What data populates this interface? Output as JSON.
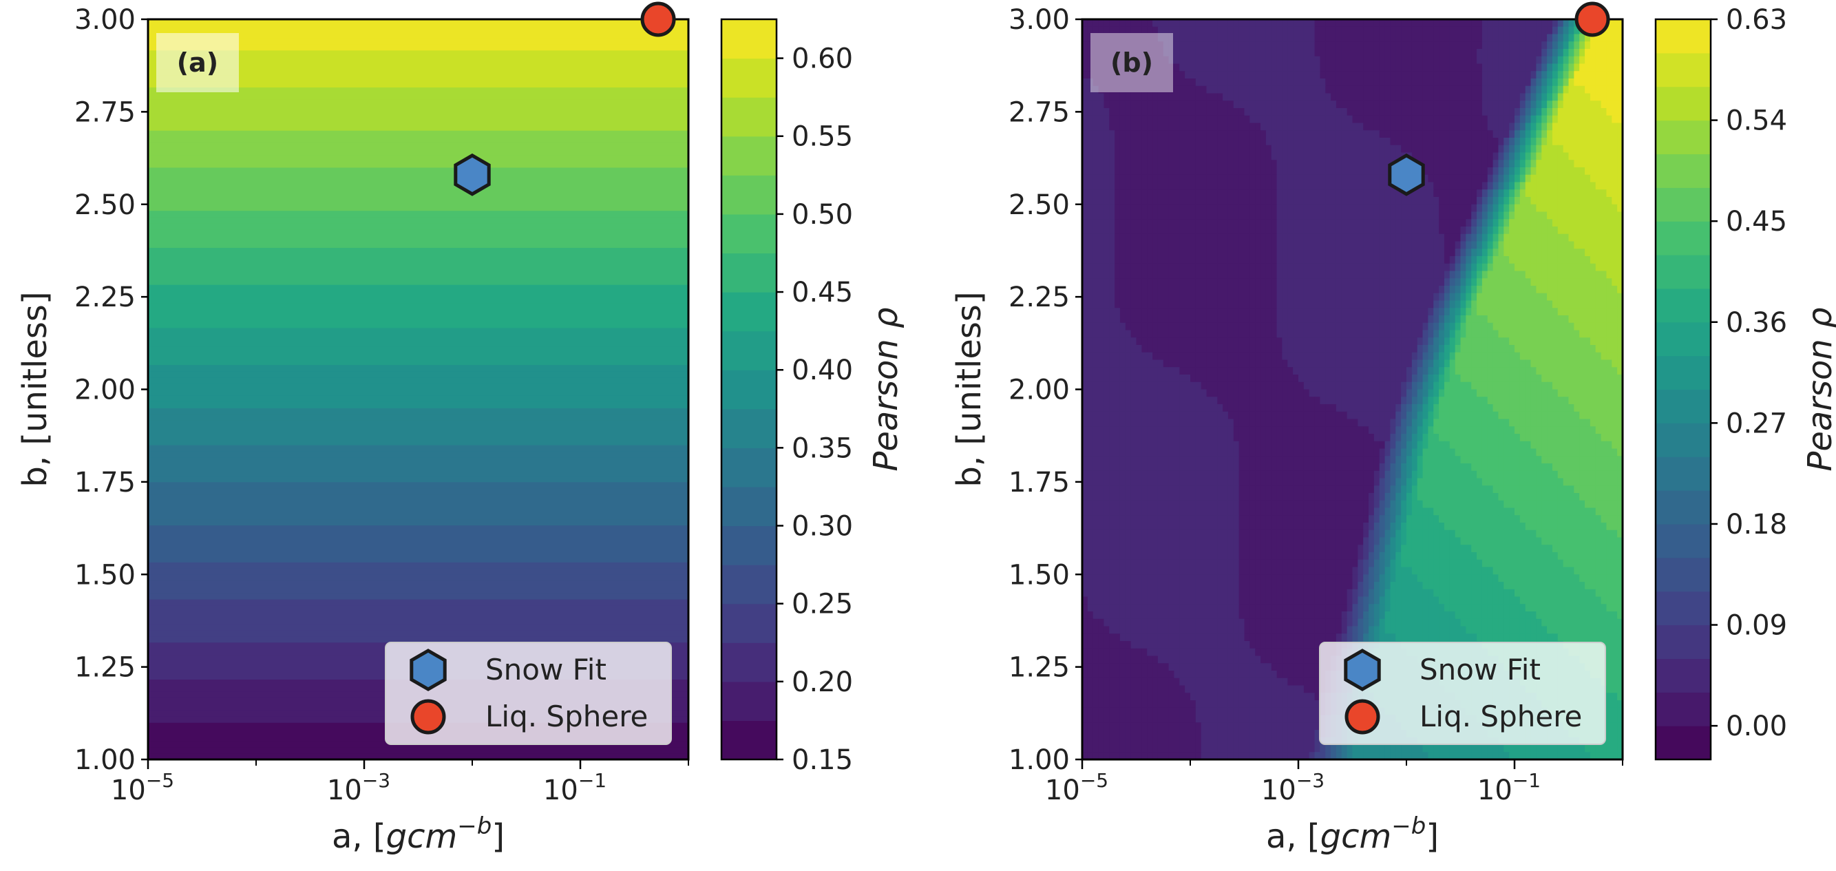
{
  "chart_data": [
    {
      "type": "contour",
      "panel_label": "(a)",
      "title": "",
      "xlabel": "a, [gcm",
      "xlabel_sup": "−b",
      "xlabel_close": "]",
      "ylabel": "b, [unitless]",
      "xscale": "log",
      "xlim_log10": [
        -5,
        0
      ],
      "ylim": [
        1.0,
        3.0
      ],
      "xticks": [
        {
          "base": "10",
          "exp": "−5",
          "log10": -5
        },
        {
          "base": "10",
          "exp": "−3",
          "log10": -3
        },
        {
          "base": "10",
          "exp": "−1",
          "log10": -1
        }
      ],
      "yticks": [
        "1.00",
        "1.25",
        "1.50",
        "1.75",
        "2.00",
        "2.25",
        "2.50",
        "2.75",
        "3.00"
      ],
      "ytick_values": [
        1.0,
        1.25,
        1.5,
        1.75,
        2.0,
        2.25,
        2.5,
        2.75,
        3.0
      ],
      "field": "horizontal bands: rho increases with b from ~0.15 at b=1.00 to ~0.62 at b=3.00, nearly independent of a",
      "colorbar": {
        "label": "Pearson ρ",
        "min": 0.15,
        "max": 0.625,
        "levels": 19,
        "ticks": [
          "0.15",
          "0.20",
          "0.25",
          "0.30",
          "0.35",
          "0.40",
          "0.45",
          "0.50",
          "0.55",
          "0.60"
        ],
        "tick_values": [
          0.15,
          0.2,
          0.25,
          0.3,
          0.35,
          0.4,
          0.45,
          0.5,
          0.55,
          0.6
        ]
      },
      "markers": [
        {
          "name": "Snow Fit",
          "shape": "hexagon",
          "color": "#4a86c6",
          "a_log10": -2.0,
          "b": 2.58
        },
        {
          "name": "Liq. Sphere",
          "shape": "circle",
          "color": "#e9462a",
          "a_log10": -0.28,
          "b": 3.0
        }
      ],
      "legend": {
        "position": "lower right",
        "entries": [
          "Snow Fit",
          "Liq. Sphere"
        ]
      }
    },
    {
      "type": "contour",
      "panel_label": "(b)",
      "title": "",
      "xlabel": "a, [gcm",
      "xlabel_sup": "−b",
      "xlabel_close": "]",
      "ylabel": "b, [unitless]",
      "xscale": "log",
      "xlim_log10": [
        -5,
        0
      ],
      "ylim": [
        1.0,
        3.0
      ],
      "xticks": [
        {
          "base": "10",
          "exp": "−5",
          "log10": -5
        },
        {
          "base": "10",
          "exp": "−3",
          "log10": -3
        },
        {
          "base": "10",
          "exp": "−1",
          "log10": -1
        }
      ],
      "yticks": [
        "1.00",
        "1.25",
        "1.50",
        "1.75",
        "2.00",
        "2.25",
        "2.50",
        "2.75",
        "3.00"
      ],
      "ytick_values": [
        1.0,
        1.25,
        1.5,
        1.75,
        2.0,
        2.25,
        2.5,
        2.75,
        3.0
      ],
      "field": "rho ~0.03 left of a diagonal boundary running from a=10^-2.9 at b=1.00 to a=10^-0.5 at b=3.00; right of boundary rho rises to ~0.33 at b=1.00 and ~0.60 at b=3.00",
      "boundary": [
        {
          "b": 1.0,
          "a_log10": -2.85
        },
        {
          "b": 1.3,
          "a_log10": -2.6
        },
        {
          "b": 1.6,
          "a_log10": -2.35
        },
        {
          "b": 1.9,
          "a_log10": -2.1
        },
        {
          "b": 2.2,
          "a_log10": -1.75
        },
        {
          "b": 2.5,
          "a_log10": -1.3
        },
        {
          "b": 2.8,
          "a_log10": -0.85
        },
        {
          "b": 3.0,
          "a_log10": -0.55
        }
      ],
      "colorbar": {
        "label": "Pearson ρ",
        "min": -0.03,
        "max": 0.63,
        "levels": 22,
        "ticks": [
          "0.00",
          "0.09",
          "0.18",
          "0.27",
          "0.36",
          "0.45",
          "0.54",
          "0.63"
        ],
        "tick_values": [
          0.0,
          0.09,
          0.18,
          0.27,
          0.36,
          0.45,
          0.54,
          0.63
        ]
      },
      "markers": [
        {
          "name": "Snow Fit",
          "shape": "hexagon",
          "color": "#4a86c6",
          "a_log10": -2.0,
          "b": 2.58
        },
        {
          "name": "Liq. Sphere",
          "shape": "circle",
          "color": "#e9462a",
          "a_log10": -0.28,
          "b": 3.0
        }
      ],
      "legend": {
        "position": "lower right",
        "entries": [
          "Snow Fit",
          "Liq. Sphere"
        ]
      }
    }
  ]
}
